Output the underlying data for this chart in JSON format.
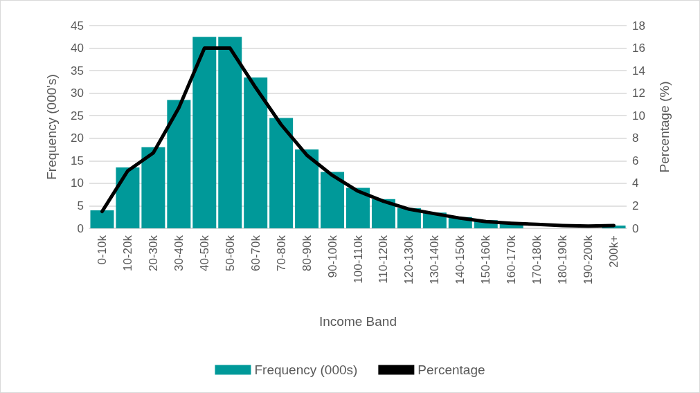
{
  "chart_data": {
    "type": "bar",
    "xlabel": "Income Band",
    "ylabel": "Frequency (000's)",
    "y2label": "Percentage (%)",
    "categories": [
      "0-10k",
      "10-20k",
      "20-30k",
      "30-40k",
      "40-50k",
      "50-60k",
      "60-70k",
      "70-80k",
      "80-90k",
      "90-100k",
      "100-110k",
      "110-120k",
      "120-130k",
      "130-140k",
      "140-150k",
      "150-160k",
      "160-170k",
      "170-180k",
      "180-190k",
      "190-200k",
      "200k+"
    ],
    "series": [
      {
        "name": "Frequency (000s)",
        "color": "#009999",
        "values": [
          4,
          13.5,
          18,
          28.5,
          42.5,
          42.5,
          33.5,
          24.5,
          17.5,
          12.5,
          9,
          6.5,
          4.5,
          3.5,
          2.5,
          1.8,
          1.3,
          null,
          null,
          null,
          0.6
        ]
      },
      {
        "name": "Percentage",
        "type": "line",
        "axis": "y2",
        "color": "#000000",
        "values": [
          1.5,
          5.1,
          6.7,
          10.7,
          16,
          16,
          12.5,
          9.2,
          6.5,
          4.7,
          3.3,
          2.4,
          1.7,
          1.3,
          0.9,
          0.6,
          0.45,
          0.35,
          0.25,
          0.2,
          0.25
        ]
      }
    ],
    "ylim": [
      0,
      45
    ],
    "yticks": [
      0,
      5,
      10,
      15,
      20,
      25,
      30,
      35,
      40,
      45
    ],
    "y2lim": [
      0,
      18
    ],
    "y2ticks": [
      0,
      2,
      4,
      6,
      8,
      10,
      12,
      14,
      16,
      18
    ],
    "grid": "y",
    "legend": "bottom",
    "marker": "none",
    "line_style": "solid"
  }
}
